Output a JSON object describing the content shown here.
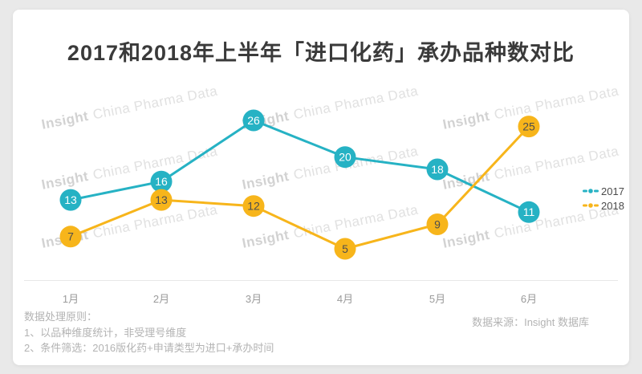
{
  "page": {
    "background_color": "#e9e9e9",
    "card_color": "#ffffff"
  },
  "title": "2017和2018年上半年「进口化药」承办品种数对比",
  "watermark": {
    "brand": "Insight",
    "rest": "China Pharma Data"
  },
  "chart_data": {
    "type": "line",
    "categories": [
      "1月",
      "2月",
      "3月",
      "4月",
      "5月",
      "6月"
    ],
    "series": [
      {
        "name": "2017",
        "color": "#26b2c4",
        "label_color": "#ffffff",
        "values": [
          13,
          16,
          26,
          20,
          18,
          11
        ]
      },
      {
        "name": "2018",
        "color": "#f7b51b",
        "label_color": "#4e4e4e",
        "values": [
          7,
          13,
          12,
          5,
          9,
          25
        ]
      }
    ],
    "title": "2017和2018年上半年「进口化药」承办品种数对比",
    "xlabel": "",
    "ylabel": "",
    "ylim": [
      5,
      26
    ],
    "grid": false,
    "legend_position": "right",
    "point_labels": "inside-circle"
  },
  "legend": {
    "items": [
      {
        "label": "2017",
        "color": "#26b2c4"
      },
      {
        "label": "2018",
        "color": "#f7b51b"
      }
    ]
  },
  "footnotes": {
    "heading": "数据处理原则：",
    "lines": [
      "1、以品种维度统计，非受理号维度",
      "2、条件筛选：2016版化药+申请类型为进口+承办时间"
    ],
    "source": "数据来源：Insight 数据库"
  }
}
